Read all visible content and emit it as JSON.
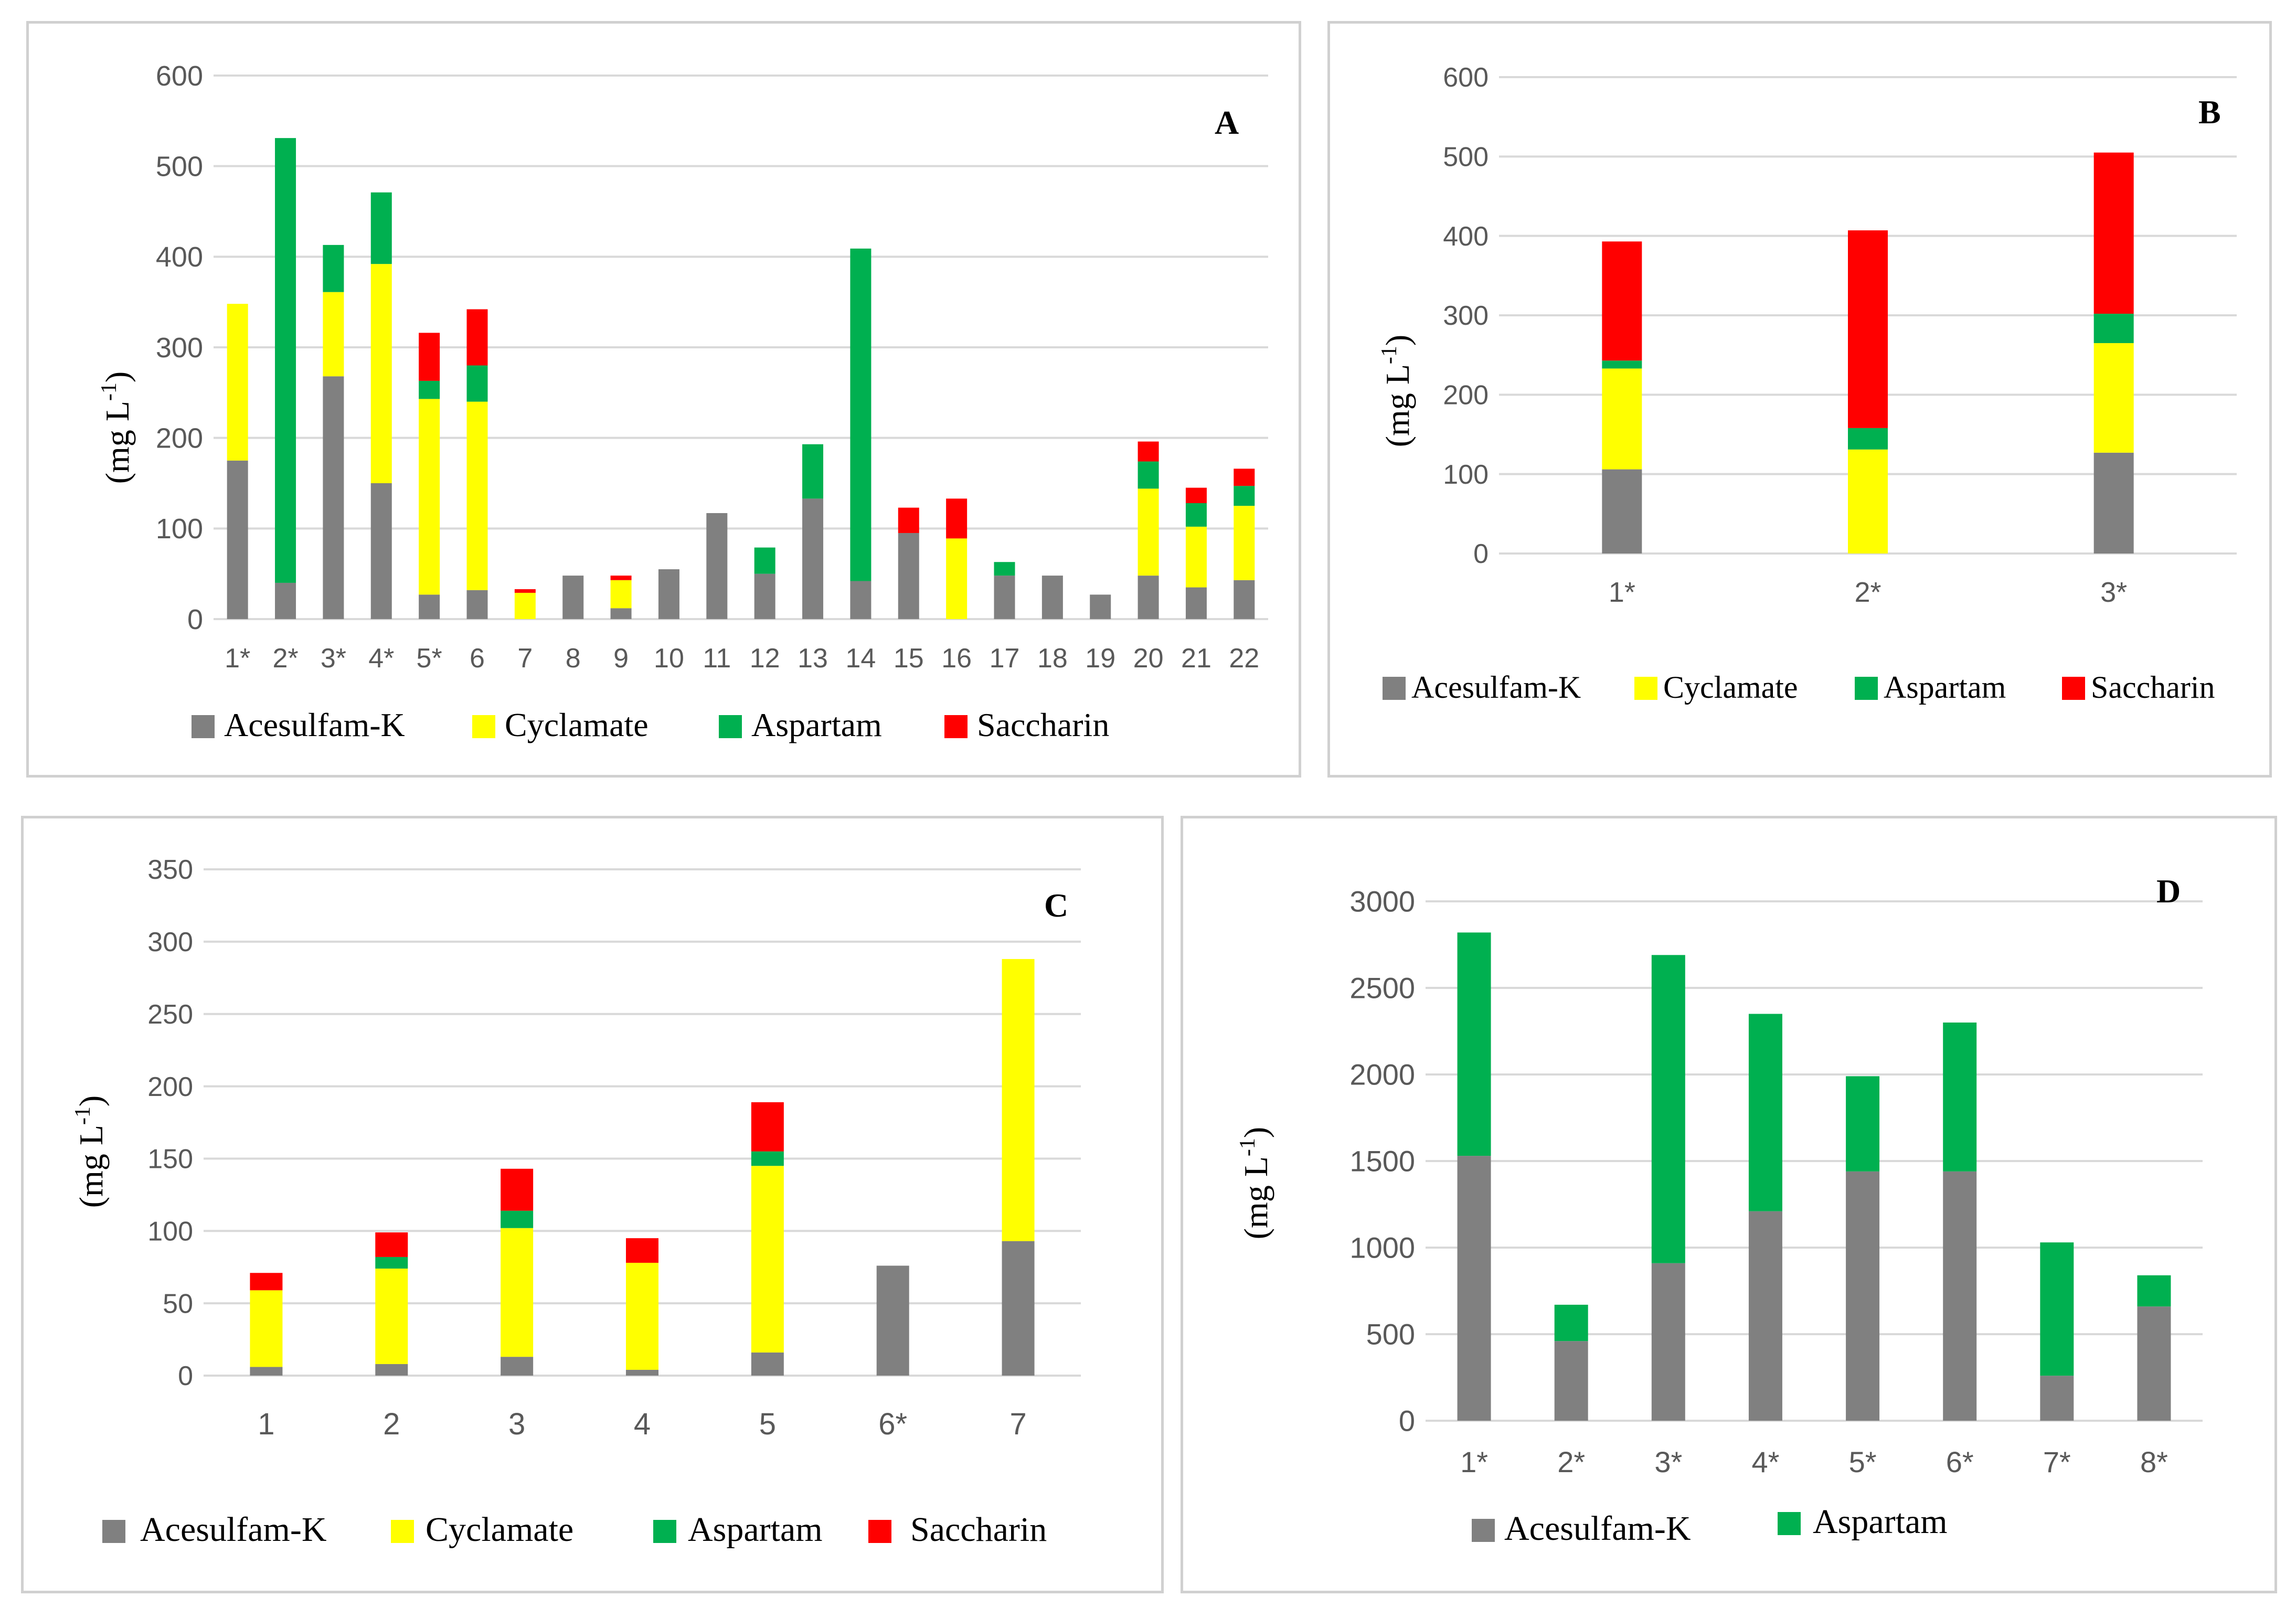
{
  "colors": {
    "Acesulfam-K": "#808080",
    "Cyclamate": "#ffff00",
    "Aspartam": "#00b050",
    "Saccharin": "#ff0000",
    "grid": "#d9d9d9",
    "bar_outline": "#7f7f7f"
  },
  "chart_data": [
    {
      "id": "A",
      "type": "bar",
      "stacked": true,
      "panel_label": "A",
      "ylabel": "(mg L",
      "ylabel_sup": "-1",
      "ylabel_close": ")",
      "ylim": [
        0,
        600
      ],
      "yticks": [
        0,
        100,
        200,
        300,
        400,
        500,
        600
      ],
      "grid": true,
      "legend_position": "bottom",
      "categories": [
        "1*",
        "2*",
        "3*",
        "4*",
        "5*",
        "6",
        "7",
        "8",
        "9",
        "10",
        "11",
        "12",
        "13",
        "14",
        "15",
        "16",
        "17",
        "18",
        "19",
        "20",
        "21",
        "22"
      ],
      "series": [
        {
          "name": "Acesulfam-K",
          "values": [
            175,
            40,
            268,
            150,
            27,
            32,
            0,
            48,
            12,
            55,
            117,
            50,
            133,
            42,
            95,
            0,
            48,
            48,
            27,
            48,
            35,
            43
          ]
        },
        {
          "name": "Cyclamate",
          "values": [
            173,
            0,
            93,
            242,
            216,
            208,
            29,
            0,
            31,
            0,
            0,
            0,
            0,
            0,
            0,
            89,
            0,
            0,
            0,
            96,
            67,
            82
          ]
        },
        {
          "name": "Aspartam",
          "values": [
            0,
            491,
            52,
            79,
            20,
            40,
            0,
            0,
            0,
            0,
            0,
            29,
            60,
            367,
            0,
            0,
            15,
            0,
            0,
            30,
            26,
            22
          ]
        },
        {
          "name": "Saccharin",
          "values": [
            0,
            0,
            0,
            0,
            53,
            62,
            4,
            0,
            5,
            0,
            0,
            0,
            0,
            0,
            28,
            44,
            0,
            0,
            0,
            22,
            17,
            19
          ]
        }
      ]
    },
    {
      "id": "B",
      "type": "bar",
      "stacked": true,
      "panel_label": "B",
      "ylabel": "(mg L",
      "ylabel_sup": "-1",
      "ylabel_close": ")",
      "ylim": [
        0,
        600
      ],
      "yticks": [
        0,
        100,
        200,
        300,
        400,
        500,
        600
      ],
      "grid": true,
      "legend_position": "bottom",
      "categories": [
        "1*",
        "2*",
        "3*"
      ],
      "series": [
        {
          "name": "Acesulfam-K",
          "values": [
            106,
            0,
            127
          ]
        },
        {
          "name": "Cyclamate",
          "values": [
            127,
            131,
            138
          ]
        },
        {
          "name": "Aspartam",
          "values": [
            10,
            27,
            37
          ]
        },
        {
          "name": "Saccharin",
          "values": [
            150,
            249,
            203
          ]
        }
      ]
    },
    {
      "id": "C",
      "type": "bar",
      "stacked": true,
      "panel_label": "C",
      "ylabel": "(mg L",
      "ylabel_sup": "-1",
      "ylabel_close": ")",
      "ylim": [
        0,
        350
      ],
      "yticks": [
        0,
        50,
        100,
        150,
        200,
        250,
        300,
        350
      ],
      "grid": true,
      "legend_position": "bottom",
      "categories": [
        "1",
        "2",
        "3",
        "4",
        "5",
        "6*",
        "7"
      ],
      "series": [
        {
          "name": "Acesulfam-K",
          "values": [
            6,
            8,
            13,
            4,
            16,
            76,
            93
          ]
        },
        {
          "name": "Cyclamate",
          "values": [
            53,
            66,
            89,
            74,
            129,
            0,
            195
          ]
        },
        {
          "name": "Aspartam",
          "values": [
            0,
            8,
            12,
            0,
            10,
            0,
            0
          ]
        },
        {
          "name": "Saccharin",
          "values": [
            12,
            17,
            29,
            17,
            34,
            0,
            0
          ]
        }
      ]
    },
    {
      "id": "D",
      "type": "bar",
      "stacked": true,
      "panel_label": "D",
      "ylabel": "(mg L",
      "ylabel_sup": "-1",
      "ylabel_close": ")",
      "ylim": [
        0,
        3000
      ],
      "yticks": [
        0,
        500,
        1000,
        1500,
        2000,
        2500,
        3000
      ],
      "grid": true,
      "legend_position": "bottom",
      "categories": [
        "1*",
        "2*",
        "3*",
        "4*",
        "5*",
        "6*",
        "7*",
        "8*"
      ],
      "series": [
        {
          "name": "Acesulfam-K",
          "values": [
            1530,
            460,
            910,
            1210,
            1440,
            1440,
            260,
            660
          ]
        },
        {
          "name": "Aspartam",
          "values": [
            1290,
            210,
            1780,
            1140,
            550,
            860,
            770,
            180
          ]
        }
      ]
    }
  ]
}
